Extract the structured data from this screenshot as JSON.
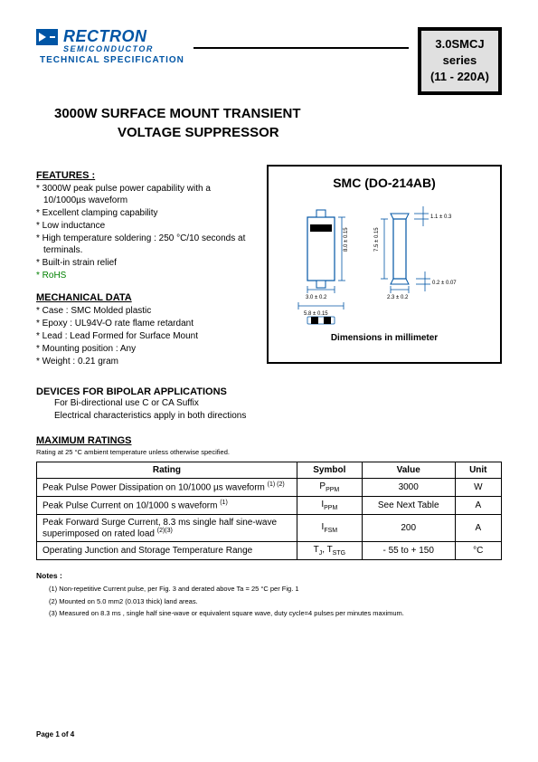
{
  "header": {
    "brand_main": "RECTRON",
    "brand_sub": "SEMICONDUCTOR",
    "tech_spec": "TECHNICAL SPECIFICATION",
    "series_line1": "3.0SMCJ",
    "series_line2": "series",
    "series_line3": "(11 - 220A)"
  },
  "title": {
    "line1": "3000W SURFACE MOUNT TRANSIENT",
    "line2": "VOLTAGE SUPPRESSOR"
  },
  "features": {
    "header": "FEATURES :",
    "items": [
      "3000W peak pulse power capability with a 10/1000µs  waveform",
      "Excellent clamping capability",
      "Low inductance",
      "High temperature soldering : 250 °C/10 seconds at terminals.",
      "Built-in strain relief",
      "RoHS"
    ]
  },
  "mechanical": {
    "header": "MECHANICAL DATA",
    "items": [
      "Case :  SMC Molded plastic",
      "Epoxy :  UL94V-O rate flame retardant",
      "Lead : Lead Formed for Surface Mount",
      "Mounting  position : Any",
      "Weight : 0.21 gram"
    ]
  },
  "diagram": {
    "title": "SMC (DO-214AB)",
    "caption": "Dimensions in millimeter",
    "dims": {
      "body_h": "8.0 ± 0.15",
      "inner_h": "7.5 ± 0.15",
      "body_w": "3.0  ± 0.2",
      "lead_span": "5.8  ± 0.15",
      "side_thick": "1.1 ± 0.3",
      "side_w": "2.3 ± 0.2",
      "lead_h": "0.2  ± 0.07"
    },
    "colors": {
      "outline": "#0055a5",
      "cathode_band": "#000000",
      "body_fill": "#ffffff"
    }
  },
  "bipolar": {
    "header": "DEVICES FOR BIPOLAR APPLICATIONS",
    "line1": "For Bi-directional use C or CA Suffix",
    "line2": "Electrical characteristics apply in both directions"
  },
  "ratings": {
    "header": "MAXIMUM RATINGS",
    "condition": "Rating at 25 °C ambient temperature unless otherwise specified.",
    "columns": [
      "Rating",
      "Symbol",
      "Value",
      "Unit"
    ],
    "rows": [
      {
        "rating": "Peak Pulse Power Dissipation on 10/1000 µs waveform",
        "sup": "(1) (2)",
        "symbol_html": "P<sub>PPM</sub>",
        "value": "3000",
        "unit": "W"
      },
      {
        "rating": "Peak Pulse Current on 10/1000 s waveform",
        "sup": "(1)",
        "symbol_html": "I<sub>PPM</sub>",
        "value": "See Next Table",
        "unit": "A"
      },
      {
        "rating": "Peak Forward Surge Current, 8.3 ms single half sine-wave superimposed on rated load",
        "sup": "(2)(3)",
        "symbol_html": "I<sub>FSM</sub>",
        "value": "200",
        "unit": "A"
      },
      {
        "rating": "Operating Junction and Storage Temperature Range",
        "sup": "",
        "symbol_html": "T<sub>J</sub>, T<sub>STG</sub>",
        "value": "- 55 to + 150",
        "unit": "°C"
      }
    ]
  },
  "notes": {
    "header": "Notes :",
    "items": [
      "(1) Non-repetitive Current pulse, per Fig. 3 and derated above Ta = 25 °C per Fig. 1",
      "(2) Mounted on 5.0 mm2 (0.013 thick) land areas.",
      "(3) Measured on 8.3 ms , single half sine-wave or equivalent square wave, duty cycle=4 pulses per minutes maximum."
    ]
  },
  "footer": {
    "page": "Page 1 of 4"
  }
}
